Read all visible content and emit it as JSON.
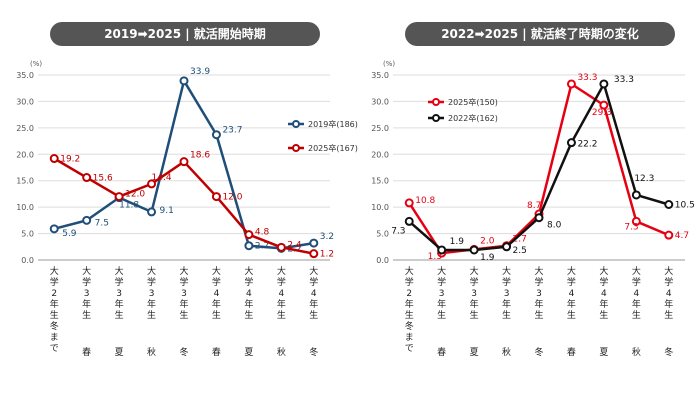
{
  "chart_data": [
    {
      "type": "line",
      "title_main": "2019➡2025",
      "title_sub": "就活開始時期",
      "unit_label": "(%)",
      "ylim": [
        0,
        35
      ],
      "yticks": [
        "0.0",
        "5.0",
        "10.0",
        "15.0",
        "20.0",
        "25.0",
        "30.0",
        "35.0"
      ],
      "categories": [
        {
          "label": "大学2年生冬まで"
        },
        {
          "label": "大学3年生",
          "season": "春"
        },
        {
          "label": "大学3年生",
          "season": "夏"
        },
        {
          "label": "大学3年生",
          "season": "秋"
        },
        {
          "label": "大学3年生",
          "season": "冬"
        },
        {
          "label": "大学4年生",
          "season": "春"
        },
        {
          "label": "大学4年生",
          "season": "夏"
        },
        {
          "label": "大学4年生",
          "season": "秋"
        },
        {
          "label": "大学4年生",
          "season": "冬"
        }
      ],
      "series": [
        {
          "name": "2019卒(186)",
          "color": "#1f4e79",
          "values": [
            5.9,
            7.5,
            11.8,
            9.1,
            33.9,
            23.7,
            2.7,
            2.2,
            3.2
          ],
          "labels": [
            "5.9",
            "7.5",
            "11.8",
            "9.1",
            "33.9",
            "23.7",
            "2.7",
            "2.2",
            "3.2"
          ]
        },
        {
          "name": "2025卒(167)",
          "color": "#c00000",
          "values": [
            19.2,
            15.6,
            12.0,
            14.4,
            18.6,
            12.0,
            4.8,
            2.4,
            1.2
          ],
          "labels": [
            "19.2",
            "15.6",
            "12.0",
            "14.4",
            "18.6",
            "12.0",
            "4.8",
            "2.4",
            "1.2"
          ]
        }
      ]
    },
    {
      "type": "line",
      "title_main": "2022➡2025",
      "title_sub": "就活終了時期の変化",
      "unit_label": "(%)",
      "ylim": [
        0,
        35
      ],
      "yticks": [
        "0.0",
        "5.0",
        "10.0",
        "15.0",
        "20.0",
        "25.0",
        "30.0",
        "35.0"
      ],
      "categories": [
        {
          "label": "大学2年生冬まで"
        },
        {
          "label": "大学3年生",
          "season": "春"
        },
        {
          "label": "大学3年生",
          "season": "夏"
        },
        {
          "label": "大学3年生",
          "season": "秋"
        },
        {
          "label": "大学3年生",
          "season": "冬"
        },
        {
          "label": "大学4年生",
          "season": "春"
        },
        {
          "label": "大学4年生",
          "season": "夏"
        },
        {
          "label": "大学4年生",
          "season": "秋"
        },
        {
          "label": "大学4年生",
          "season": "冬"
        }
      ],
      "series": [
        {
          "name": "2025卒(150)",
          "color": "#e60012",
          "values": [
            10.8,
            1.3,
            2.0,
            2.7,
            8.7,
            33.3,
            29.3,
            7.3,
            4.7
          ],
          "labels": [
            "10.8",
            "1.3",
            "2.0",
            "2.7",
            "8.7",
            "33.3",
            "29.3",
            "7.3",
            "4.7"
          ]
        },
        {
          "name": "2022卒(162)",
          "color": "#111111",
          "values": [
            7.3,
            1.9,
            1.9,
            2.5,
            8.0,
            22.2,
            33.3,
            12.3,
            10.5
          ],
          "labels": [
            "7.3",
            "1.9",
            "1.9",
            "2.5",
            "8.0",
            "22.2",
            "33.3",
            "12.3",
            "10.5"
          ]
        }
      ]
    }
  ]
}
